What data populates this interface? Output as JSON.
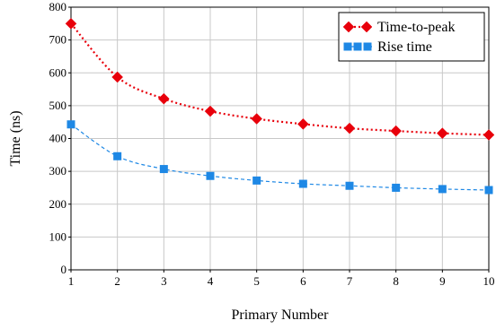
{
  "chart_data": {
    "type": "line",
    "xlabel": "Primary Number",
    "ylabel": "Time (ns)",
    "x": [
      1,
      2,
      3,
      4,
      5,
      6,
      7,
      8,
      9,
      10
    ],
    "xlim": [
      1,
      10
    ],
    "ylim": [
      0,
      800
    ],
    "x_ticks": [
      "1",
      "2",
      "3",
      "4",
      "5",
      "6",
      "7",
      "8",
      "9",
      "10"
    ],
    "y_ticks": [
      "0",
      "100",
      "200",
      "300",
      "400",
      "500",
      "600",
      "700",
      "800"
    ],
    "grid": true,
    "legend_position": "top-right",
    "series": [
      {
        "name": "Time-to-peak",
        "values": [
          750,
          587,
          521,
          483,
          460,
          444,
          431,
          423,
          416,
          411
        ],
        "color": "#e8000b",
        "marker": "diamond",
        "line_style": "dotted"
      },
      {
        "name": "Rise time",
        "values": [
          443,
          346,
          307,
          286,
          272,
          262,
          256,
          250,
          246,
          243
        ],
        "color": "#1e88e5",
        "marker": "square",
        "line_style": "dashed"
      }
    ]
  }
}
